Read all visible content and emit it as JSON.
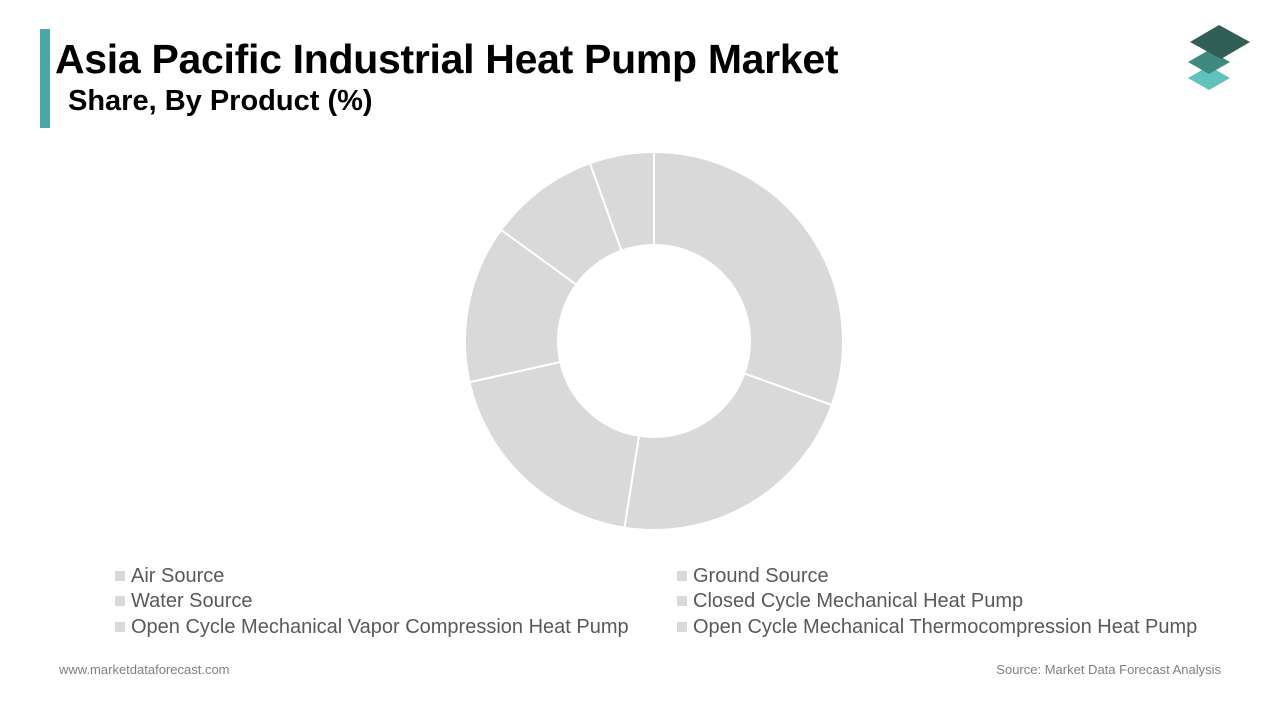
{
  "header": {
    "title": "Asia Pacific Industrial Heat Pump Market",
    "subtitle": "Share, By Product (%)",
    "accent_color": "#4aa9a8"
  },
  "logo": {
    "icon": "stacked-layers-icon",
    "colors": [
      "#2f5f57",
      "#3e8a80",
      "#5fc2bd"
    ]
  },
  "chart_data": {
    "type": "pie",
    "style": "donut",
    "slice_color": "#d9d9d9",
    "separator_color": "#ffffff",
    "categories": [
      "Air Source",
      "Ground Source",
      "Water Source",
      "Closed Cycle Mechanical Heat Pump",
      "Open Cycle Mechanical Vapor Compression Heat Pump",
      "Open Cycle Mechanical Thermocompression Heat Pump"
    ],
    "values": [
      30.5,
      22.0,
      19.0,
      13.5,
      9.5,
      5.5
    ],
    "legend_position": "bottom",
    "legend_order": [
      0,
      1,
      2,
      3,
      4,
      5
    ]
  },
  "footer": {
    "website": "www.marketdataforecast.com",
    "source": "Source: Market Data Forecast Analysis"
  }
}
